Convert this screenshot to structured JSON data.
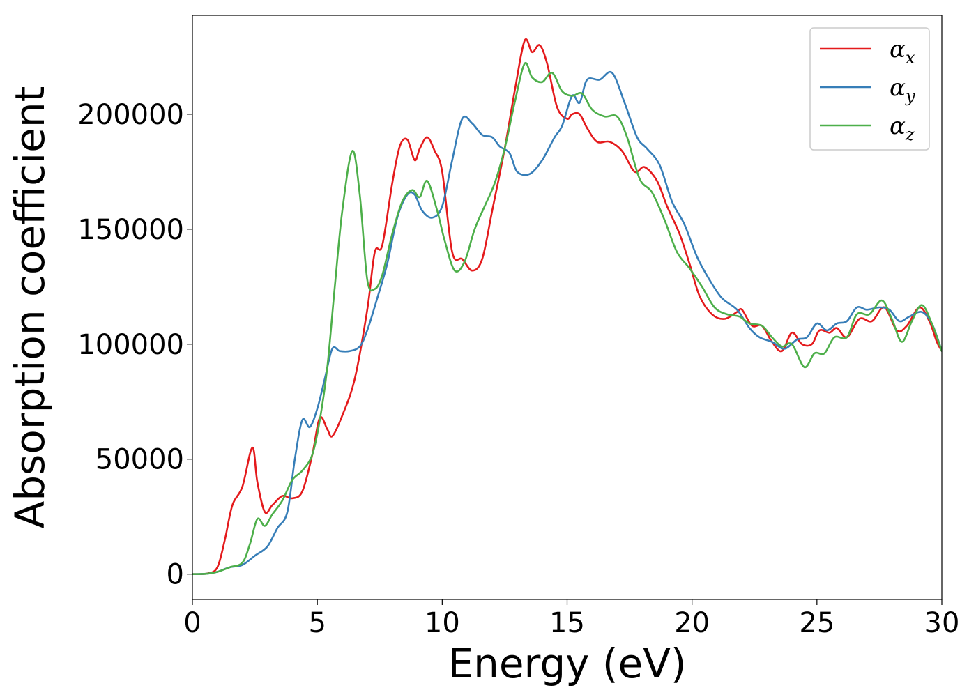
{
  "chart_data": {
    "type": "line",
    "xlabel": "Energy (eV)",
    "ylabel": "Absorption coefficient",
    "xlim": [
      0,
      30
    ],
    "ylim": [
      -11000,
      243000
    ],
    "xticks": [
      0,
      5,
      10,
      15,
      20,
      25,
      30
    ],
    "xtick_labels": [
      "0",
      "5",
      "10",
      "15",
      "20",
      "25",
      "30"
    ],
    "yticks": [
      0,
      50000,
      100000,
      150000,
      200000
    ],
    "ytick_labels": [
      "0",
      "50000",
      "100000",
      "150000",
      "200000"
    ],
    "grid": false,
    "legend_position": "top-right",
    "series": [
      {
        "name": "α",
        "subscript": "x",
        "color": "#e41a1c",
        "points": [
          [
            0,
            0
          ],
          [
            0.6,
            300
          ],
          [
            1.0,
            3000
          ],
          [
            1.3,
            15000
          ],
          [
            1.6,
            30000
          ],
          [
            2.0,
            38000
          ],
          [
            2.4,
            55000
          ],
          [
            2.6,
            40000
          ],
          [
            2.9,
            27000
          ],
          [
            3.2,
            30000
          ],
          [
            3.6,
            34000
          ],
          [
            4.0,
            33000
          ],
          [
            4.4,
            36000
          ],
          [
            4.8,
            52000
          ],
          [
            5.1,
            68000
          ],
          [
            5.4,
            63000
          ],
          [
            5.6,
            60000
          ],
          [
            6.0,
            69000
          ],
          [
            6.5,
            85000
          ],
          [
            7.0,
            115000
          ],
          [
            7.3,
            140000
          ],
          [
            7.6,
            143000
          ],
          [
            8.0,
            170000
          ],
          [
            8.3,
            186000
          ],
          [
            8.6,
            189000
          ],
          [
            8.9,
            180000
          ],
          [
            9.1,
            185000
          ],
          [
            9.4,
            190000
          ],
          [
            9.7,
            184000
          ],
          [
            10.0,
            175000
          ],
          [
            10.4,
            140000
          ],
          [
            10.8,
            137000
          ],
          [
            11.2,
            132000
          ],
          [
            11.6,
            137000
          ],
          [
            12.0,
            158000
          ],
          [
            12.5,
            185000
          ],
          [
            12.9,
            210000
          ],
          [
            13.3,
            232000
          ],
          [
            13.6,
            227000
          ],
          [
            13.9,
            230000
          ],
          [
            14.2,
            222000
          ],
          [
            14.6,
            203000
          ],
          [
            15.0,
            198000
          ],
          [
            15.2,
            200000
          ],
          [
            15.5,
            200000
          ],
          [
            15.8,
            194000
          ],
          [
            16.2,
            188000
          ],
          [
            16.7,
            188000
          ],
          [
            17.2,
            184000
          ],
          [
            17.7,
            175000
          ],
          [
            18.1,
            177000
          ],
          [
            18.6,
            171000
          ],
          [
            19.0,
            160000
          ],
          [
            19.5,
            148000
          ],
          [
            19.9,
            135000
          ],
          [
            20.3,
            121000
          ],
          [
            20.8,
            113000
          ],
          [
            21.3,
            111000
          ],
          [
            21.8,
            114000
          ],
          [
            22.0,
            115000
          ],
          [
            22.4,
            108000
          ],
          [
            22.8,
            108000
          ],
          [
            23.2,
            101000
          ],
          [
            23.6,
            97000
          ],
          [
            24.0,
            105000
          ],
          [
            24.4,
            100000
          ],
          [
            24.8,
            100000
          ],
          [
            25.1,
            106000
          ],
          [
            25.5,
            105000
          ],
          [
            25.8,
            107000
          ],
          [
            26.2,
            103000
          ],
          [
            26.7,
            111000
          ],
          [
            27.2,
            110000
          ],
          [
            27.7,
            116000
          ],
          [
            28.2,
            106000
          ],
          [
            28.6,
            108000
          ],
          [
            29.1,
            116000
          ],
          [
            29.5,
            110000
          ],
          [
            29.8,
            101000
          ],
          [
            30.0,
            97000
          ]
        ]
      },
      {
        "name": "α",
        "subscript": "y",
        "color": "#377eb8",
        "points": [
          [
            0,
            0
          ],
          [
            0.6,
            200
          ],
          [
            1.0,
            1000
          ],
          [
            1.5,
            3000
          ],
          [
            2.0,
            4000
          ],
          [
            2.5,
            8000
          ],
          [
            3.0,
            12000
          ],
          [
            3.4,
            20000
          ],
          [
            3.8,
            27000
          ],
          [
            4.1,
            50000
          ],
          [
            4.4,
            67000
          ],
          [
            4.7,
            64000
          ],
          [
            5.0,
            72000
          ],
          [
            5.3,
            85000
          ],
          [
            5.6,
            98000
          ],
          [
            5.9,
            97000
          ],
          [
            6.3,
            97000
          ],
          [
            6.7,
            99000
          ],
          [
            7.0,
            106000
          ],
          [
            7.4,
            120000
          ],
          [
            7.8,
            135000
          ],
          [
            8.2,
            155000
          ],
          [
            8.6,
            165000
          ],
          [
            8.9,
            165000
          ],
          [
            9.2,
            158000
          ],
          [
            9.6,
            155000
          ],
          [
            10.0,
            160000
          ],
          [
            10.4,
            180000
          ],
          [
            10.8,
            198000
          ],
          [
            11.2,
            196000
          ],
          [
            11.6,
            191000
          ],
          [
            12.0,
            190000
          ],
          [
            12.3,
            186000
          ],
          [
            12.7,
            183000
          ],
          [
            13.0,
            175000
          ],
          [
            13.5,
            174000
          ],
          [
            14.0,
            180000
          ],
          [
            14.5,
            190000
          ],
          [
            14.8,
            195000
          ],
          [
            15.2,
            208000
          ],
          [
            15.5,
            205000
          ],
          [
            15.8,
            215000
          ],
          [
            16.3,
            215000
          ],
          [
            16.8,
            218000
          ],
          [
            17.3,
            205000
          ],
          [
            17.8,
            190000
          ],
          [
            18.2,
            185000
          ],
          [
            18.7,
            178000
          ],
          [
            19.2,
            162000
          ],
          [
            19.7,
            152000
          ],
          [
            20.2,
            138000
          ],
          [
            20.7,
            128000
          ],
          [
            21.2,
            120000
          ],
          [
            21.8,
            115000
          ],
          [
            22.3,
            107000
          ],
          [
            22.7,
            103000
          ],
          [
            23.2,
            101000
          ],
          [
            23.7,
            98000
          ],
          [
            24.2,
            102000
          ],
          [
            24.6,
            103000
          ],
          [
            25.0,
            109000
          ],
          [
            25.4,
            106000
          ],
          [
            25.8,
            109000
          ],
          [
            26.2,
            110000
          ],
          [
            26.6,
            116000
          ],
          [
            27.0,
            115000
          ],
          [
            27.5,
            116000
          ],
          [
            27.9,
            115000
          ],
          [
            28.3,
            110000
          ],
          [
            28.7,
            112000
          ],
          [
            29.2,
            114000
          ],
          [
            29.6,
            109000
          ],
          [
            30.0,
            97000
          ]
        ]
      },
      {
        "name": "α",
        "subscript": "z",
        "color": "#4daf4a",
        "points": [
          [
            0,
            0
          ],
          [
            0.6,
            200
          ],
          [
            1.0,
            1000
          ],
          [
            1.5,
            3000
          ],
          [
            2.0,
            5000
          ],
          [
            2.3,
            13000
          ],
          [
            2.6,
            24000
          ],
          [
            2.9,
            21000
          ],
          [
            3.2,
            26000
          ],
          [
            3.6,
            32000
          ],
          [
            4.0,
            41000
          ],
          [
            4.4,
            45000
          ],
          [
            4.8,
            52000
          ],
          [
            5.1,
            67000
          ],
          [
            5.4,
            90000
          ],
          [
            5.7,
            125000
          ],
          [
            6.0,
            158000
          ],
          [
            6.4,
            184000
          ],
          [
            6.7,
            165000
          ],
          [
            7.0,
            128000
          ],
          [
            7.3,
            124000
          ],
          [
            7.6,
            130000
          ],
          [
            8.0,
            148000
          ],
          [
            8.4,
            162000
          ],
          [
            8.8,
            167000
          ],
          [
            9.1,
            164000
          ],
          [
            9.4,
            171000
          ],
          [
            9.8,
            158000
          ],
          [
            10.1,
            145000
          ],
          [
            10.5,
            132000
          ],
          [
            10.9,
            136000
          ],
          [
            11.3,
            150000
          ],
          [
            11.7,
            160000
          ],
          [
            12.1,
            170000
          ],
          [
            12.5,
            185000
          ],
          [
            12.9,
            205000
          ],
          [
            13.3,
            222000
          ],
          [
            13.6,
            216000
          ],
          [
            14.0,
            214000
          ],
          [
            14.4,
            218000
          ],
          [
            14.8,
            210000
          ],
          [
            15.2,
            208000
          ],
          [
            15.6,
            209000
          ],
          [
            16.0,
            202000
          ],
          [
            16.5,
            199000
          ],
          [
            17.0,
            199000
          ],
          [
            17.4,
            190000
          ],
          [
            17.9,
            172000
          ],
          [
            18.4,
            166000
          ],
          [
            18.9,
            154000
          ],
          [
            19.4,
            140000
          ],
          [
            19.9,
            133000
          ],
          [
            20.4,
            125000
          ],
          [
            20.9,
            116000
          ],
          [
            21.4,
            113000
          ],
          [
            21.9,
            112000
          ],
          [
            22.3,
            109000
          ],
          [
            22.8,
            108000
          ],
          [
            23.2,
            103000
          ],
          [
            23.6,
            99000
          ],
          [
            24.0,
            100000
          ],
          [
            24.5,
            90000
          ],
          [
            24.9,
            96000
          ],
          [
            25.3,
            96000
          ],
          [
            25.7,
            103000
          ],
          [
            26.2,
            103000
          ],
          [
            26.6,
            113000
          ],
          [
            27.1,
            113000
          ],
          [
            27.6,
            119000
          ],
          [
            28.0,
            111000
          ],
          [
            28.4,
            101000
          ],
          [
            28.8,
            110000
          ],
          [
            29.2,
            117000
          ],
          [
            29.6,
            109000
          ],
          [
            30.0,
            97000
          ]
        ]
      }
    ]
  }
}
